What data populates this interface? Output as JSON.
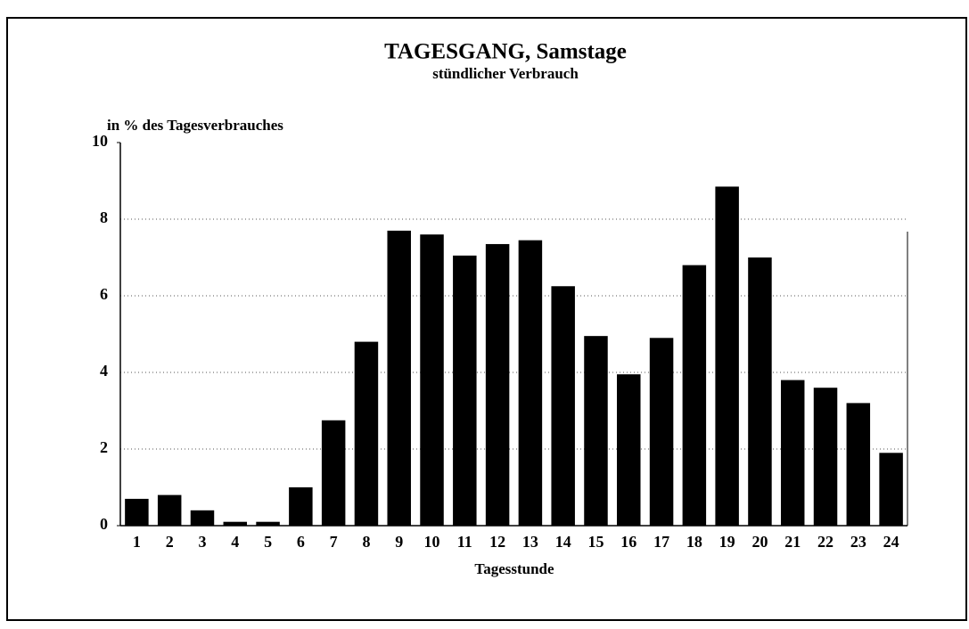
{
  "chart_data": {
    "type": "bar",
    "title": "TAGESGANG, Samstage",
    "subtitle": "stündlicher Verbrauch",
    "y_label": "in % des Tagesverbrauches",
    "x_label": "Tagesstunde",
    "categories": [
      "1",
      "2",
      "3",
      "4",
      "5",
      "6",
      "7",
      "8",
      "9",
      "10",
      "11",
      "12",
      "13",
      "14",
      "15",
      "16",
      "17",
      "18",
      "19",
      "20",
      "21",
      "22",
      "23",
      "24"
    ],
    "values": [
      0.7,
      0.8,
      0.4,
      0.1,
      0.1,
      1.0,
      2.75,
      4.8,
      7.7,
      7.6,
      7.05,
      7.35,
      7.45,
      6.25,
      4.95,
      3.95,
      4.9,
      6.8,
      8.85,
      7.0,
      3.8,
      3.6,
      3.2,
      1.9
    ],
    "color": "#000000",
    "ylim": [
      0,
      10
    ],
    "yticks": [
      0,
      2,
      4,
      6,
      8,
      10
    ],
    "grid": true
  }
}
